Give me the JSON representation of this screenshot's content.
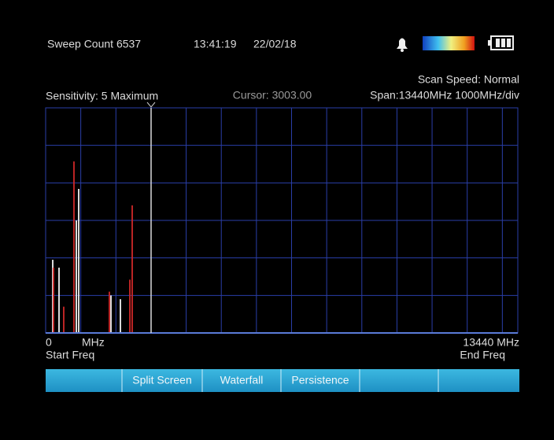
{
  "header": {
    "sweep_count": "Sweep Count 6537",
    "time": "13:41:19",
    "date": "22/02/18"
  },
  "status": {
    "scan_speed": "Scan Speed: Normal",
    "sensitivity": "Sensitivity: 5 Maximum",
    "cursor": "Cursor: 3003.00",
    "span": "Span:13440MHz 1000MHz/div"
  },
  "axis": {
    "start_value": "0",
    "start_unit": "MHz",
    "start_caption": "Start Freq",
    "end_value": "13440 MHz",
    "end_caption": "End Freq"
  },
  "menu": [
    "Split Screen",
    "Waterfall",
    "Persistence"
  ],
  "chart_data": {
    "type": "spectrum",
    "xlim": [
      0,
      13440
    ],
    "ylim": [
      0,
      6
    ],
    "xticks": [
      0,
      1000,
      2000,
      3000,
      4000,
      5000,
      6000,
      7000,
      8000,
      9000,
      10000,
      11000,
      12000,
      13000
    ],
    "yticks": [
      0,
      1,
      2,
      3,
      4,
      5,
      6
    ],
    "series": [
      {
        "color": "#f2f2f2",
        "x": [
          202,
          381,
          874,
          941,
          1859,
          2128
        ],
        "values": [
          1.95,
          1.74,
          3.0,
          3.84,
          1.0,
          0.9
        ]
      },
      {
        "color": "#d02828",
        "x": [
          224,
          515,
          806,
          1814,
          2397,
          2464
        ],
        "values": [
          1.74,
          0.7,
          4.57,
          1.1,
          1.42,
          3.4
        ]
      }
    ]
  }
}
